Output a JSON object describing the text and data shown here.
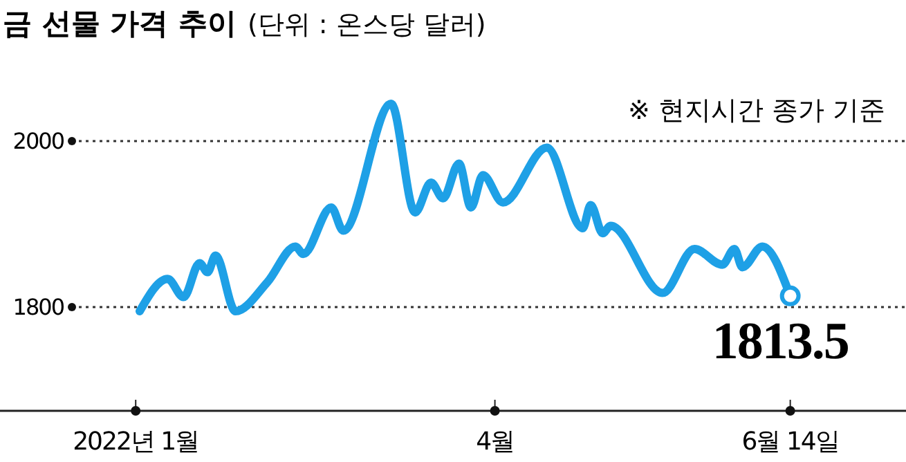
{
  "chart_data": {
    "type": "line",
    "title": "금 선물 가격 추이",
    "subtitle": "(단위 : 온스당 달러)",
    "annotations": [
      "※ 현지시간 종가 기준",
      {
        "text": "1813.5",
        "x": "2022-06-14",
        "y": 1813.5
      }
    ],
    "x": [
      "2022-01-02",
      "2022-01-09",
      "2022-01-13",
      "2022-01-17",
      "2022-01-19",
      "2022-01-21",
      "2022-01-26",
      "2022-02-03",
      "2022-02-10",
      "2022-02-12",
      "2022-02-19",
      "2022-02-22",
      "2022-03-06",
      "2022-03-12",
      "2022-03-16",
      "2022-03-19",
      "2022-03-23",
      "2022-03-26",
      "2022-03-29",
      "2022-04-03",
      "2022-04-14",
      "2022-04-23",
      "2022-04-25",
      "2022-04-28",
      "2022-04-30",
      "2022-05-13",
      "2022-05-21",
      "2022-05-28",
      "2022-05-31",
      "2022-06-02",
      "2022-06-07",
      "2022-06-14"
    ],
    "series": [
      {
        "color": "#1ea0e6",
        "values": [
          1795,
          1834,
          1812,
          1853,
          1842,
          1862,
          1795,
          1830,
          1873,
          1864,
          1920,
          1892,
          2045,
          1914,
          1950,
          1931,
          1973,
          1920,
          1959,
          1926,
          1992,
          1895,
          1923,
          1889,
          1898,
          1817,
          1870,
          1851,
          1870,
          1848,
          1873,
          1813.5
        ]
      }
    ],
    "xlim": [
      "2021-11-28",
      "2022-07-13"
    ],
    "xticks": [
      {
        "value": "2022-01-01",
        "label": "2022년 1월"
      },
      {
        "value": "2022-04-01",
        "label": "4월"
      },
      {
        "value": "2022-06-14",
        "label": "6월 14일"
      }
    ],
    "ylim": [
      1675,
      2170
    ],
    "yticks": [
      1800,
      2000
    ],
    "grid": "y",
    "line_style": "solid"
  }
}
